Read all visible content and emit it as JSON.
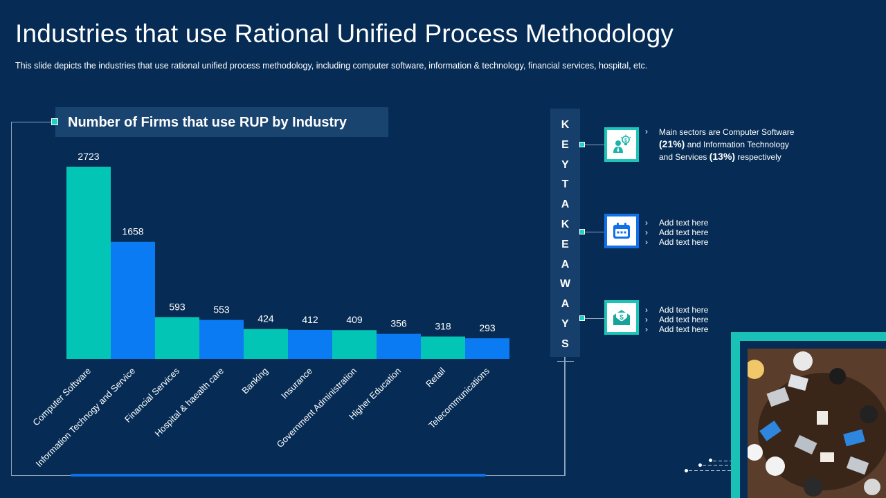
{
  "header": {
    "title": "Industries that use Rational Unified Process Methodology",
    "subtitle": "This slide depicts the industries that use rational unified process methodology, including computer software, information  & technology, financial services, hospital, etc."
  },
  "chart_data": {
    "type": "bar",
    "title": "Number of Firms that use RUP by Industry",
    "categories": [
      "Computer Software",
      "Information Technogy and Service",
      "Financial Services",
      "Hospital & haealth care",
      "Banking",
      "Insurance",
      "Government Administration",
      "Higher Education",
      "Retail",
      "Telecommunications"
    ],
    "values": [
      2723,
      1658,
      593,
      553,
      424,
      412,
      409,
      356,
      318,
      293
    ],
    "value_labels": [
      "2723",
      "1658",
      "593",
      "553",
      "424",
      "412",
      "409",
      "356",
      "318",
      "293"
    ],
    "xlabel": "",
    "ylabel": "",
    "ylim": [
      0,
      2723
    ],
    "colors": [
      "#02c5b5",
      "#0a7bf2"
    ]
  },
  "takeaways": {
    "heading_letters": [
      "K",
      "E",
      "Y",
      "T",
      "A",
      "K",
      "E",
      "A",
      "W",
      "A",
      "Y",
      "S"
    ],
    "items": [
      {
        "icon": "businessman-idea-icon",
        "chevron": "›",
        "text_a": "Main sectors are Computer Software",
        "bold_a": "(21%)",
        "text_b": " and Information Technology and Services ",
        "bold_b": "(13%)",
        "text_c": " respectively"
      },
      {
        "icon": "calendar-icon",
        "lines": [
          "Add text here",
          "Add text here",
          "Add text here"
        ],
        "chevron": "›"
      },
      {
        "icon": "money-envelope-icon",
        "lines": [
          "Add text here",
          "Add text here",
          "Add text here"
        ],
        "chevron": "›"
      }
    ]
  }
}
